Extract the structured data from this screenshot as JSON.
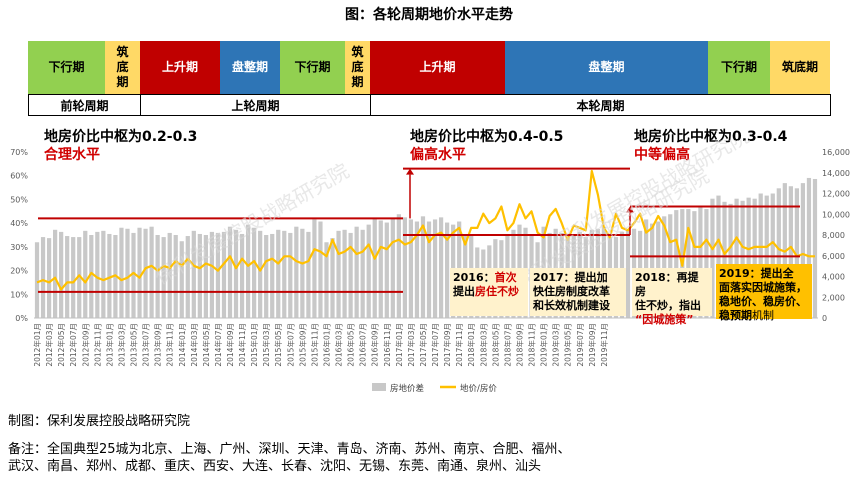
{
  "title": "图：各轮周期地价水平走势",
  "phases": [
    {
      "label": "下行期",
      "color": "#92d050"
    },
    {
      "label": "筑\n底\n期",
      "color": "#ffd966"
    },
    {
      "label": "上升期",
      "color": "#c00000",
      "fg": "#ffffff"
    },
    {
      "label": "盘整期",
      "color": "#2e75b6",
      "fg": "#ffffff"
    },
    {
      "label": "下行期",
      "color": "#92d050"
    },
    {
      "label": "筑\n底\n期",
      "color": "#ffd966"
    },
    {
      "label": "上升期",
      "color": "#c00000",
      "fg": "#ffffff"
    },
    {
      "label": "盘整期",
      "color": "#2e75b6",
      "fg": "#ffffff"
    },
    {
      "label": "下行期",
      "color": "#92d050"
    },
    {
      "label": "筑底期",
      "color": "#ffd966"
    }
  ],
  "cycles": [
    "前轮周期",
    "上轮周期",
    "本轮周期"
  ],
  "ranges": [
    {
      "text": "地房价比中枢为0.2-0.3",
      "level": "合理水平"
    },
    {
      "text": "地房价比中枢为0.4-0.5",
      "level": "偏高水平"
    },
    {
      "text": "地房价比中枢为0.3-0.4",
      "level": "中等偏高"
    }
  ],
  "annotations": {
    "a2016": {
      "y": "2016：",
      "h": "首次",
      "t2": "提出",
      "h2": "房住不炒"
    },
    "a2017": {
      "t1": "2017：提出加",
      "t2": "快住房制度改革",
      "t3": "和长效机制建设"
    },
    "a2018": {
      "t1": "2018：再提房",
      "t2": "住不炒，指出",
      "h": "“因城施策”"
    },
    "a2019": {
      "t1": "2019：提出全",
      "t2": "面落实因城施策，",
      "t3": "稳地价、稳房价、",
      "t4": "稳预期",
      "t5": "机制"
    }
  },
  "watermark": "保利发展控股战略研究院",
  "footer": {
    "source": "制图：保利发展控股战略研究院",
    "note1": "备注：全国典型25城为北京、上海、广州、深圳、天津、青岛、济南、苏州、南京、合肥、福州、",
    "note2": "武汉、南昌、郑州、成都、重庆、西安、大连、长春、沈阳、无锡、东莞、南通、泉州、汕头"
  },
  "chart_data": {
    "type": "bar",
    "x_start": "2012-01",
    "x_end": "2019-12",
    "x_tick_labels": [
      "2012年01月",
      "2012年03月",
      "2012年05月",
      "2012年07月",
      "2012年09月",
      "2012年11月",
      "2013年01月",
      "2013年03月",
      "2013年05月",
      "2013年07月",
      "2013年09月",
      "2013年11月",
      "2014年01月",
      "2014年03月",
      "2014年05月",
      "2014年07月",
      "2014年09月",
      "2014年11月",
      "2015年01月",
      "2015年03月",
      "2015年05月",
      "2015年07月",
      "2015年09月",
      "2015年11月",
      "2016年01月",
      "2016年03月",
      "2016年05月",
      "2016年07月",
      "2016年09月",
      "2016年11月",
      "2017年01月",
      "2017年03月",
      "2017年05月",
      "2017年07月",
      "2017年09月",
      "2017年11月",
      "2018年01月",
      "2018年03月",
      "2018年05月",
      "2018年07月",
      "2018年09月",
      "2018年11月",
      "2019年01月",
      "2019年03月",
      "2019年05月",
      "2019年07月",
      "2019年09月",
      "2019年11月"
    ],
    "y_left_ticks": [
      "0%",
      "10%",
      "20%",
      "30%",
      "40%",
      "50%",
      "60%",
      "70%"
    ],
    "y_left_lim": [
      0,
      70
    ],
    "y_right_ticks": [
      "0",
      "2,000",
      "4,000",
      "6,000",
      "8,000",
      "10,000",
      "12,000",
      "14,000",
      "16,000"
    ],
    "y_right_lim": [
      0,
      16000
    ],
    "series": [
      {
        "name": "房地价差",
        "kind": "bar",
        "axis": "right",
        "color": "#c8c8c8",
        "values": [
          7300,
          7800,
          7700,
          8500,
          8300,
          7900,
          7800,
          7800,
          8400,
          8000,
          8300,
          8400,
          8100,
          8000,
          8700,
          8600,
          8200,
          8700,
          8600,
          8800,
          8000,
          7800,
          8200,
          8000,
          7400,
          7900,
          8400,
          8100,
          8000,
          8300,
          8200,
          8300,
          8800,
          8500,
          8100,
          9000,
          8700,
          8400,
          8000,
          8100,
          8500,
          8400,
          8200,
          8800,
          8600,
          8300,
          9500,
          9300,
          7300,
          7700,
          8400,
          8500,
          8200,
          8800,
          8500,
          9000,
          9600,
          9400,
          9200,
          9600,
          10000,
          9700,
          9500,
          9300,
          9800,
          9300,
          9500,
          9700,
          9200,
          9000,
          9300,
          8000,
          8000,
          6800,
          6600,
          7000,
          7600,
          7500,
          8000,
          8500,
          9000,
          8700,
          8000,
          7300,
          8800,
          8200,
          8600,
          8200,
          7800,
          7900,
          8300,
          7800,
          8500,
          8600,
          8800,
          7800,
          7800,
          8300,
          8500,
          8600,
          8400,
          9500,
          9100,
          9300,
          9800,
          10000,
          10400,
          10500,
          10500,
          10300,
          10800,
          10500,
          11500,
          11800,
          11200,
          11000,
          11500,
          11300,
          11600,
          11500,
          12000,
          11800,
          12000,
          12500,
          13000,
          12700,
          12500,
          13000,
          13500,
          13400
        ]
      },
      {
        "name": "地价/房价",
        "kind": "line",
        "axis": "left",
        "color": "#ffc000",
        "values": [
          15,
          16,
          15,
          17,
          12,
          15,
          15,
          18,
          15,
          19,
          17,
          16,
          17,
          18,
          16,
          17,
          19,
          17,
          21,
          22,
          20,
          22,
          21,
          24,
          22,
          25,
          22,
          21,
          23,
          22,
          20,
          23,
          26,
          21,
          25,
          22,
          24,
          20,
          24,
          25,
          23,
          26,
          26,
          24,
          23,
          24,
          29,
          28,
          26,
          33,
          27,
          28,
          30,
          27,
          28,
          31,
          25,
          30,
          29,
          32,
          33,
          31,
          32,
          35,
          39,
          32,
          35,
          36,
          33,
          36,
          38,
          31,
          38,
          38,
          44,
          40,
          42,
          47,
          37,
          40,
          48,
          42,
          45,
          36,
          34,
          43,
          46,
          40,
          33,
          39,
          38,
          37,
          62,
          52,
          38,
          34,
          44,
          38,
          37,
          40,
          44,
          36,
          38,
          43,
          39,
          32,
          33,
          22,
          38,
          30,
          30,
          33,
          29,
          33,
          27,
          30,
          34,
          30,
          29,
          30,
          30,
          30,
          32,
          29,
          28,
          30,
          26,
          27,
          26,
          26
        ]
      }
    ],
    "bands": [
      {
        "label": "地房价比中枢为0.2-0.3",
        "low": 0.11,
        "high": 0.42
      },
      {
        "label": "地房价比中枢为0.4-0.5",
        "low": 0.35,
        "high": 0.63
      },
      {
        "label": "地房价比中枢为0.3-0.4",
        "low": 0.26,
        "high": 0.47
      }
    ],
    "legend": [
      "房地价差",
      "地价/房价"
    ],
    "legend_position": "bottom"
  }
}
